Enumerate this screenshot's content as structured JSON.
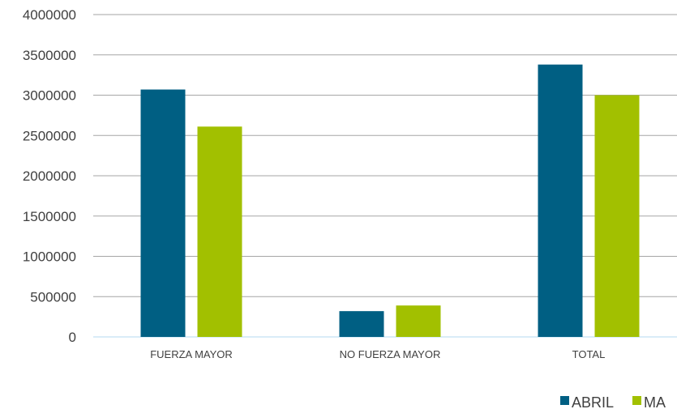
{
  "chart_data": {
    "type": "bar",
    "categories": [
      "FUERZA MAYOR",
      "NO FUERZA MAYOR",
      "TOTAL"
    ],
    "series": [
      {
        "name": "ABRIL",
        "values": [
          3070000,
          320000,
          3380000
        ],
        "color": "#005f83"
      },
      {
        "name": "MAYO",
        "values": [
          2610000,
          390000,
          3000000
        ],
        "color": "#a2c000"
      }
    ],
    "legend_visible_labels": [
      "ABRIL",
      "MA"
    ],
    "y_ticks": [
      "0",
      "500000",
      "1000000",
      "1500000",
      "2000000",
      "2500000",
      "3000000",
      "3500000",
      "4000000"
    ],
    "ylim": [
      0,
      4000000
    ],
    "grid": true,
    "gridline_color": "#a6a6a6",
    "axis_line_color": "#b3d9f2",
    "legend_position": "bottom-right",
    "title": "",
    "xlabel": "",
    "ylabel": ""
  }
}
